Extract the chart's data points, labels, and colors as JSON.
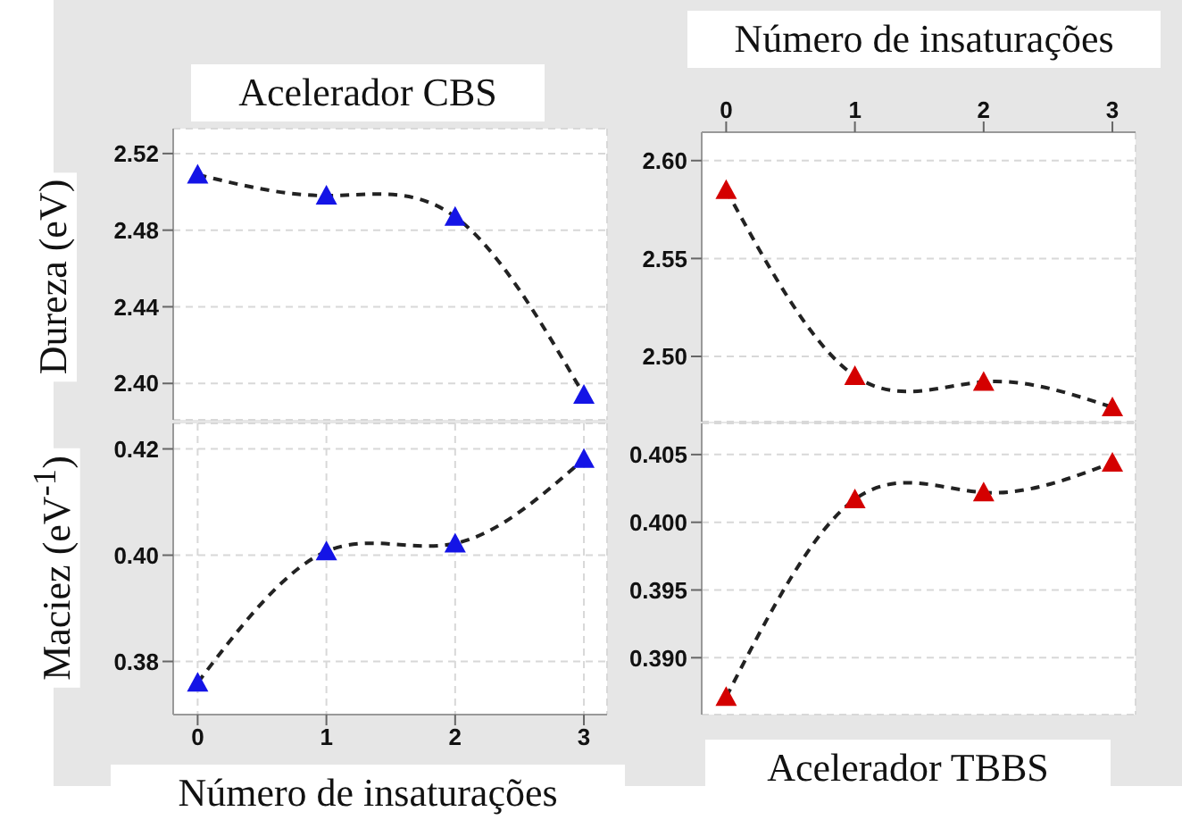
{
  "chart_data": [
    {
      "type": "line",
      "title": "Acelerador CBS",
      "ylabel": "Dureza (eV)",
      "x": [
        0,
        1,
        2,
        3
      ],
      "xlim": [
        -0.19,
        3.18
      ],
      "xticks": [
        0,
        1,
        2,
        3
      ],
      "ylim": [
        2.381,
        2.533
      ],
      "yticks": [
        {
          "value": 2.4,
          "label": "2.40"
        },
        {
          "value": 2.44,
          "label": "2.44"
        },
        2.48,
        2.52
      ],
      "tick_labels": "y",
      "grid": true,
      "marker": "triangle",
      "line_style": "dashed",
      "series": [
        {
          "color": "#1414e6",
          "values": [
            2.509,
            2.498,
            2.487,
            2.394
          ]
        }
      ]
    },
    {
      "type": "line",
      "ylabel": "Maciez (eV$^{-1}$)",
      "xlabel": "Número de insaturações",
      "x": [
        0,
        1,
        2,
        3
      ],
      "xlim": [
        -0.19,
        3.18
      ],
      "xticks": [
        0,
        1,
        2,
        3
      ],
      "ylim": [
        0.37,
        0.4248
      ],
      "yticks": [
        {
          "value": 0.38,
          "label": "0.38"
        },
        {
          "value": 0.4,
          "label": "0.40"
        },
        0.42
      ],
      "grid": true,
      "marker": "triangle",
      "line_style": "dashed",
      "series": [
        {
          "color": "#1414e6",
          "values": [
            0.376,
            0.4007,
            0.4022,
            0.4181
          ]
        }
      ]
    },
    {
      "type": "line",
      "x2label": "Número de insaturações",
      "x": [
        0,
        1,
        2,
        3
      ],
      "xlim": [
        -0.19,
        3.18
      ],
      "xticks": [
        0,
        1,
        2,
        3
      ],
      "tick_labels": "y",
      "x2lim": [
        -0.19,
        3.18
      ],
      "x2ticks": [
        0,
        1,
        2,
        3
      ],
      "ylim": [
        2.4667,
        2.6145
      ],
      "yticks": [
        {
          "value": 2.5,
          "label": "2.50"
        },
        2.55,
        {
          "value": 2.6,
          "label": "2.60"
        }
      ],
      "grid": true,
      "marker": "triangle",
      "line_style": "dashed",
      "series": [
        {
          "color": "#d40000",
          "values": [
            2.585,
            2.49,
            2.487,
            2.474
          ]
        }
      ]
    },
    {
      "type": "line",
      "title": "Acelerador TBBS",
      "x": [
        0,
        1,
        2,
        3
      ],
      "xlim": [
        -0.19,
        3.18
      ],
      "xticks": [
        0,
        1,
        2,
        3
      ],
      "ylim": [
        0.3858,
        0.4073
      ],
      "yticks": [
        {
          "value": 0.39,
          "label": "0.390"
        },
        0.395,
        {
          "value": 0.4,
          "label": "0.400"
        },
        0.405
      ],
      "tick_labels": "y",
      "grid": true,
      "marker": "triangle",
      "line_style": "dashed",
      "series": [
        {
          "color": "#d40000",
          "values": [
            0.3871,
            0.4017,
            0.4022,
            0.4044
          ]
        }
      ]
    }
  ]
}
